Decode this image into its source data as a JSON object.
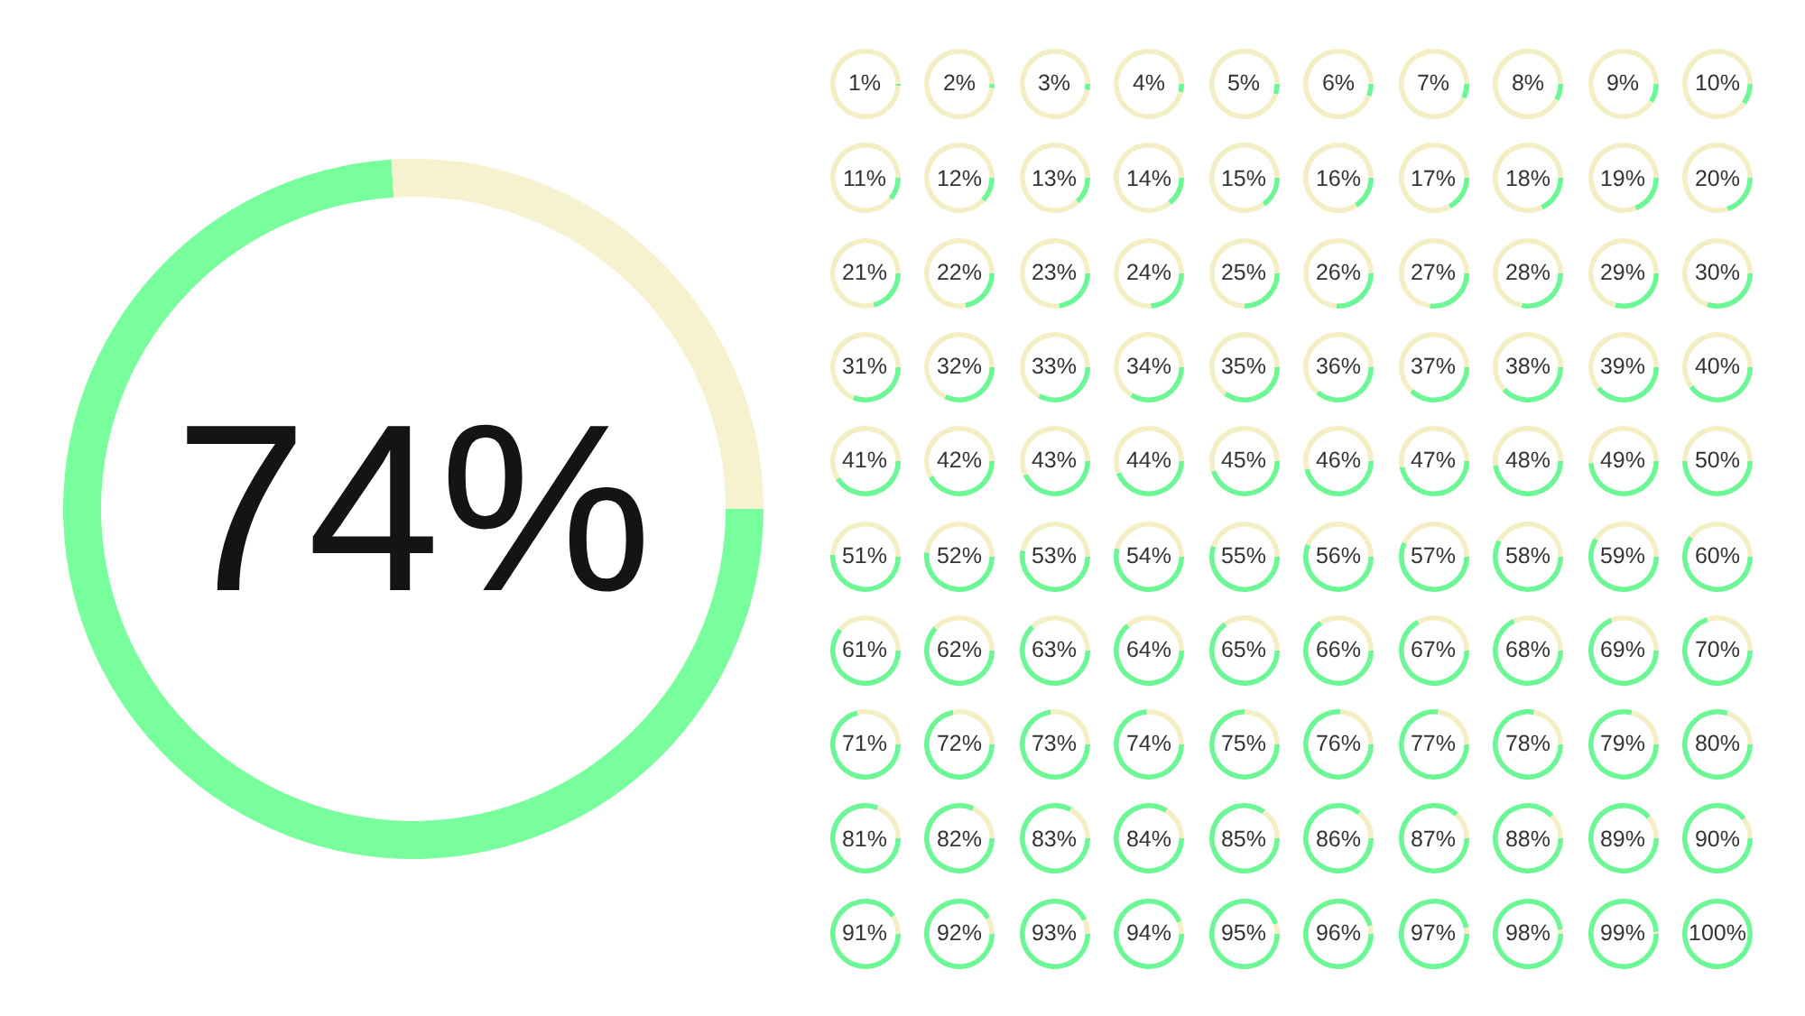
{
  "chart_data": [
    {
      "type": "donut",
      "categories": [
        null,
        null
      ],
      "values": [
        74,
        26
      ],
      "colors": [
        "#78fe9c",
        "#f6f2cf"
      ],
      "value_labels": [
        "74%",
        null
      ]
    },
    {
      "type": "other",
      "values": [
        1,
        2,
        3,
        4,
        5,
        6,
        7,
        8,
        9,
        10,
        11,
        12,
        13,
        14,
        15,
        16,
        17,
        18,
        19,
        20,
        21,
        22,
        23,
        24,
        25,
        26,
        27,
        28,
        29,
        30,
        31,
        32,
        33,
        34,
        35,
        36,
        37,
        38,
        39,
        40,
        41,
        42,
        43,
        44,
        45,
        46,
        47,
        48,
        49,
        50,
        51,
        52,
        53,
        54,
        55,
        56,
        57,
        58,
        59,
        60,
        61,
        62,
        63,
        64,
        65,
        66,
        67,
        68,
        69,
        70,
        71,
        72,
        73,
        74,
        75,
        76,
        77,
        78,
        79,
        80,
        81,
        82,
        83,
        84,
        85,
        86,
        87,
        88,
        89,
        90,
        91,
        92,
        93,
        94,
        95,
        96,
        97,
        98,
        99,
        100
      ],
      "value_labels": [
        "1%",
        "2%",
        "3%",
        "4%",
        "5%",
        "6%",
        "7%",
        "8%",
        "9%",
        "10%",
        "11%",
        "12%",
        "13%",
        "14%",
        "15%",
        "16%",
        "17%",
        "18%",
        "19%",
        "20%",
        "21%",
        "22%",
        "23%",
        "24%",
        "25%",
        "26%",
        "27%",
        "28%",
        "29%",
        "30%",
        "31%",
        "32%",
        "33%",
        "34%",
        "35%",
        "36%",
        "37%",
        "38%",
        "39%",
        "40%",
        "41%",
        "42%",
        "43%",
        "44%",
        "45%",
        "46%",
        "47%",
        "48%",
        "49%",
        "50%",
        "51%",
        "52%",
        "53%",
        "54%",
        "55%",
        "56%",
        "57%",
        "58%",
        "59%",
        "60%",
        "61%",
        "62%",
        "63%",
        "64%",
        "65%",
        "66%",
        "67%",
        "68%",
        "69%",
        "70%",
        "71%",
        "72%",
        "73%",
        "74%",
        "75%",
        "76%",
        "77%",
        "78%",
        "79%",
        "80%",
        "81%",
        "82%",
        "83%",
        "84%",
        "85%",
        "86%",
        "87%",
        "88%",
        "89%",
        "90%",
        "91%",
        "92%",
        "93%",
        "94%",
        "95%",
        "96%",
        "97%",
        "98%",
        "99%",
        "100%"
      ],
      "color": "#6df695"
    }
  ]
}
